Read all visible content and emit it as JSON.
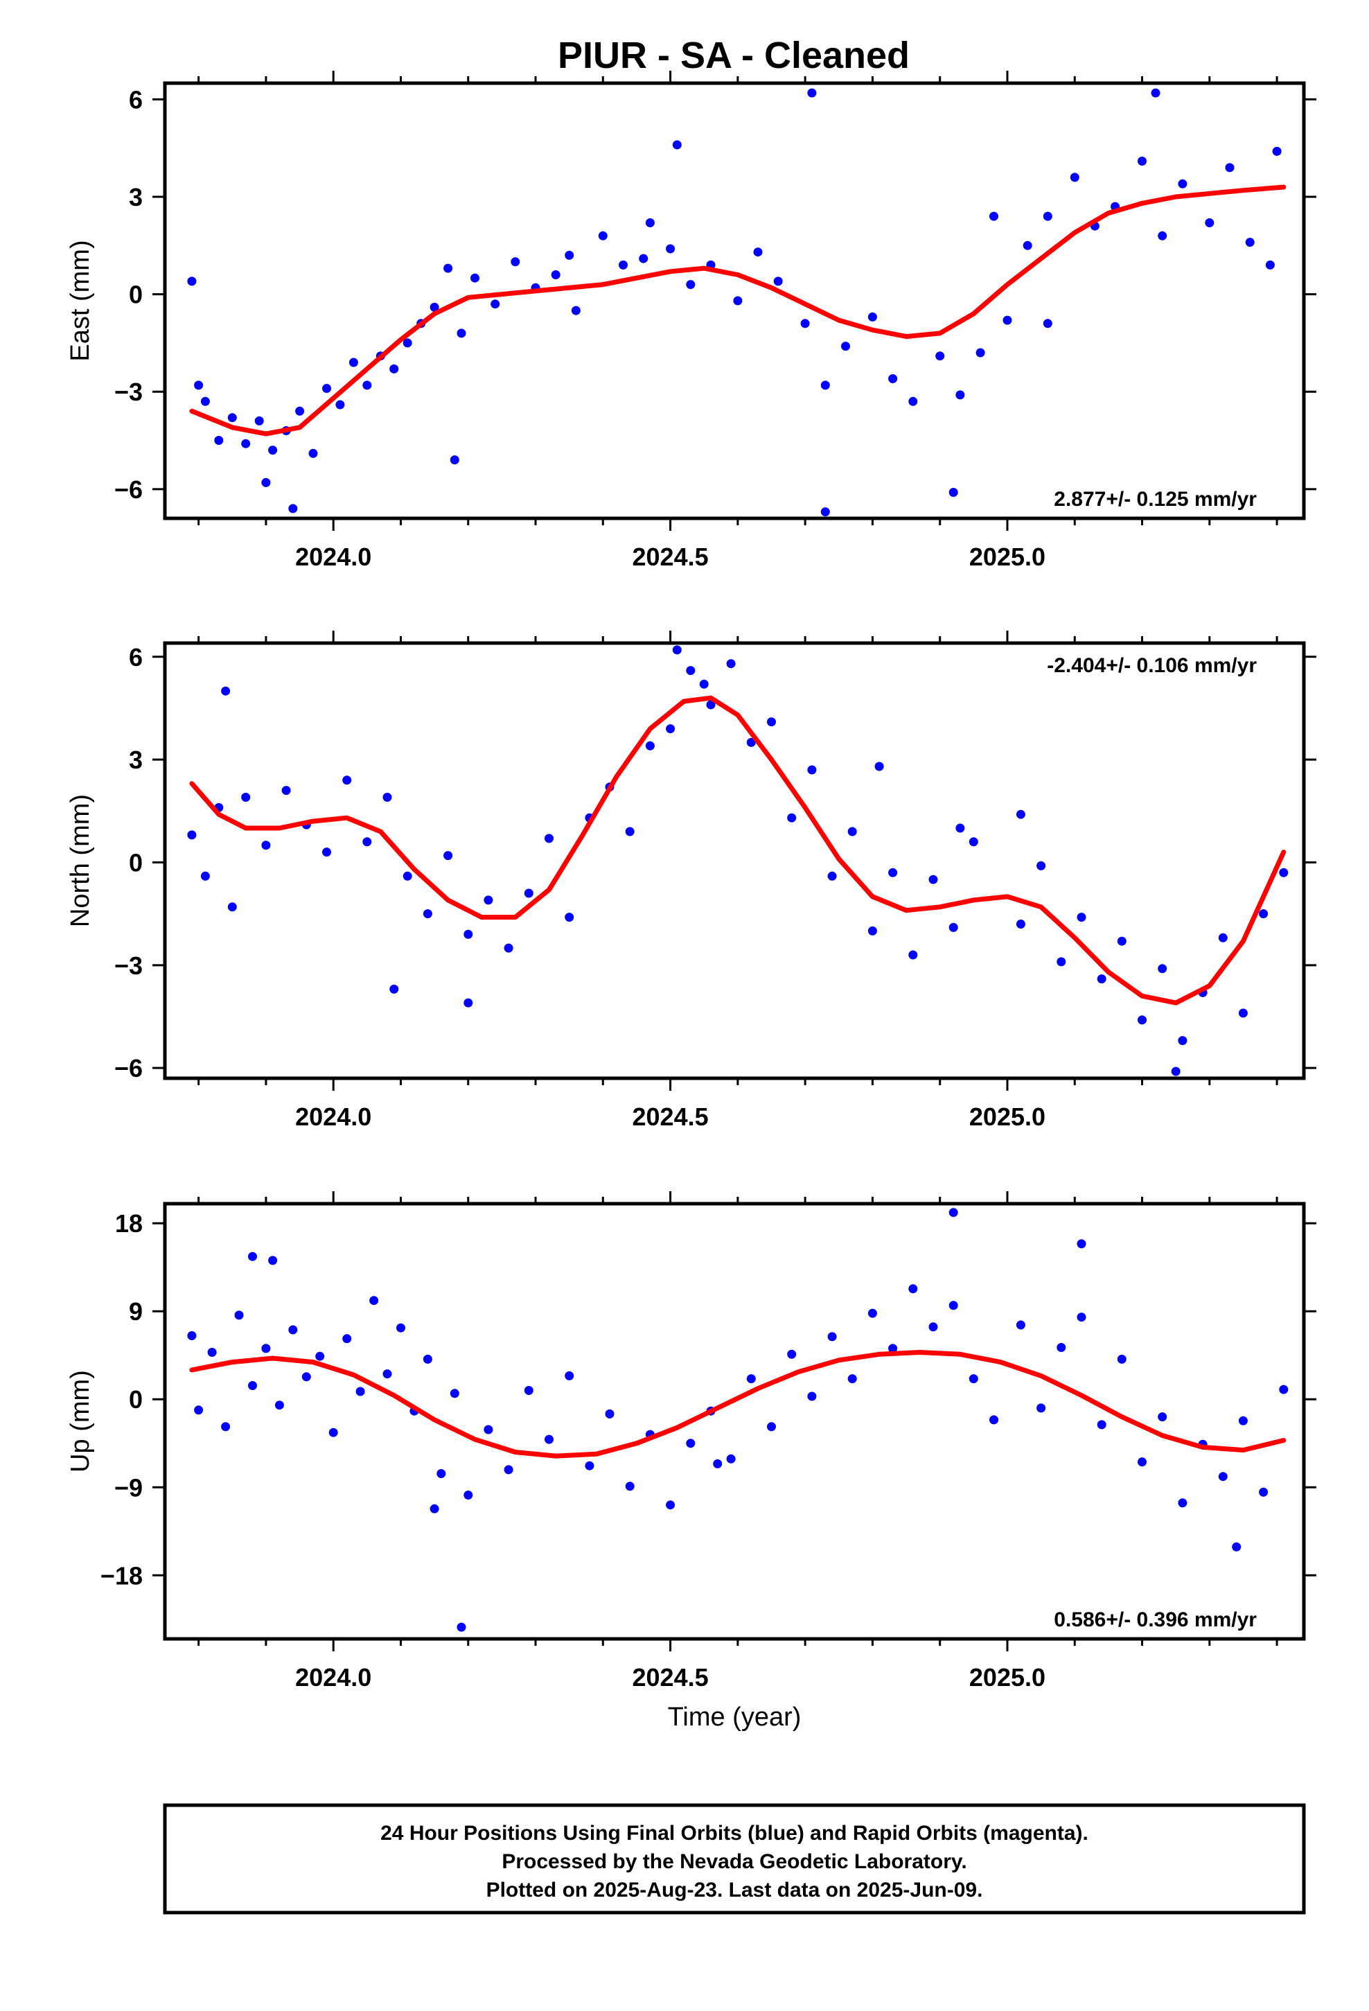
{
  "page": {
    "title": "PIUR  - SA - Cleaned",
    "caption_lines": [
      "24 Hour Positions Using Final Orbits (blue) and Rapid Orbits (magenta).",
      "Processed by the Nevada Geodetic Laboratory.",
      "Plotted on 2025-Aug-23. Last data on 2025-Jun-09."
    ]
  },
  "colors": {
    "points": "#0000ff",
    "fit": "#ff0000",
    "axes": "#000000"
  },
  "chart_data": [
    {
      "type": "scatter",
      "panel": "east",
      "ylabel": "East (mm)",
      "xlabel": "",
      "xlim": [
        2023.75,
        2025.44
      ],
      "ylim": [
        -6.9,
        6.5
      ],
      "xticks": [
        2024.0,
        2024.5,
        2025.0
      ],
      "xtick_labels": [
        "2024.0",
        "2024.5",
        "2025.0"
      ],
      "yticks": [
        6,
        3,
        0,
        -3,
        -6
      ],
      "ytick_labels": [
        "6",
        "3",
        "0",
        "−3",
        "−6"
      ],
      "rate_text": "2.877+/- 0.125 mm/yr",
      "rate_position": "bottom-right",
      "fit_trend": {
        "x": [
          2023.79,
          2023.85,
          2023.9,
          2023.95,
          2024.0,
          2024.05,
          2024.1,
          2024.15,
          2024.2,
          2024.3,
          2024.4,
          2024.5,
          2024.55,
          2024.6,
          2024.65,
          2024.7,
          2024.75,
          2024.8,
          2024.85,
          2024.9,
          2024.95,
          2025.0,
          2025.05,
          2025.1,
          2025.15,
          2025.2,
          2025.25,
          2025.3,
          2025.35,
          2025.41
        ],
        "y": [
          -3.6,
          -4.1,
          -4.3,
          -4.1,
          -3.2,
          -2.3,
          -1.4,
          -0.6,
          -0.1,
          0.1,
          0.3,
          0.7,
          0.8,
          0.6,
          0.2,
          -0.3,
          -0.8,
          -1.1,
          -1.3,
          -1.2,
          -0.6,
          0.3,
          1.1,
          1.9,
          2.5,
          2.8,
          3.0,
          3.1,
          3.2,
          3.3
        ]
      },
      "points": {
        "x": [
          2023.79,
          2023.8,
          2023.81,
          2023.83,
          2023.85,
          2023.87,
          2023.89,
          2023.91,
          2023.93,
          2023.95,
          2023.97,
          2023.99,
          2024.01,
          2024.03,
          2024.05,
          2024.07,
          2024.09,
          2024.11,
          2024.13,
          2024.15,
          2024.17,
          2024.19,
          2024.21,
          2024.24,
          2024.27,
          2024.3,
          2024.33,
          2024.36,
          2024.4,
          2024.43,
          2024.46,
          2024.5,
          2024.53,
          2024.56,
          2024.6,
          2024.63,
          2024.66,
          2024.7,
          2024.73,
          2024.76,
          2024.8,
          2024.83,
          2024.86,
          2024.9,
          2024.93,
          2024.96,
          2025.0,
          2025.03,
          2025.06,
          2025.1,
          2025.13,
          2025.16,
          2025.2,
          2025.23,
          2025.26,
          2025.3,
          2025.33,
          2025.36,
          2025.4,
          2023.9,
          2023.94,
          2024.18,
          2024.51,
          2024.71,
          2024.92,
          2025.22,
          2025.06,
          2024.73,
          2024.98,
          2025.39,
          2024.35,
          2024.47
        ],
        "y": [
          0.4,
          -2.8,
          -3.3,
          -4.5,
          -3.8,
          -4.6,
          -3.9,
          -4.8,
          -4.2,
          -3.6,
          -4.9,
          -2.9,
          -3.4,
          -2.1,
          -2.8,
          -1.9,
          -2.3,
          -1.5,
          -0.9,
          -0.4,
          0.8,
          -1.2,
          0.5,
          -0.3,
          1.0,
          0.2,
          0.6,
          -0.5,
          1.8,
          0.9,
          1.1,
          1.4,
          0.3,
          0.9,
          -0.2,
          1.3,
          0.4,
          -0.9,
          -2.8,
          -1.6,
          -0.7,
          -2.6,
          -3.3,
          -1.9,
          -3.1,
          -1.8,
          -0.8,
          1.5,
          2.4,
          3.6,
          2.1,
          2.7,
          4.1,
          1.8,
          3.4,
          2.2,
          3.9,
          1.6,
          4.4,
          -5.8,
          -6.6,
          -5.1,
          4.6,
          6.2,
          -6.1,
          6.2,
          -0.9,
          -6.7,
          2.4,
          0.9,
          1.2,
          2.2
        ]
      }
    },
    {
      "type": "scatter",
      "panel": "north",
      "ylabel": "North (mm)",
      "xlabel": "",
      "xlim": [
        2023.75,
        2025.44
      ],
      "ylim": [
        -6.3,
        6.4
      ],
      "xticks": [
        2024.0,
        2024.5,
        2025.0
      ],
      "xtick_labels": [
        "2024.0",
        "2024.5",
        "2025.0"
      ],
      "yticks": [
        6,
        3,
        0,
        -3,
        -6
      ],
      "ytick_labels": [
        "6",
        "3",
        "0",
        "−3",
        "−6"
      ],
      "rate_text": "-2.404+/- 0.106 mm/yr",
      "rate_position": "top-right",
      "fit_trend": {
        "x": [
          2023.79,
          2023.83,
          2023.87,
          2023.92,
          2023.97,
          2024.02,
          2024.07,
          2024.12,
          2024.17,
          2024.22,
          2024.27,
          2024.32,
          2024.37,
          2024.42,
          2024.47,
          2024.52,
          2024.56,
          2024.6,
          2024.65,
          2024.7,
          2024.75,
          2024.8,
          2024.85,
          2024.9,
          2024.95,
          2025.0,
          2025.05,
          2025.1,
          2025.15,
          2025.2,
          2025.25,
          2025.3,
          2025.35,
          2025.41
        ],
        "y": [
          2.3,
          1.4,
          1.0,
          1.0,
          1.2,
          1.3,
          0.9,
          -0.2,
          -1.1,
          -1.6,
          -1.6,
          -0.8,
          0.8,
          2.5,
          3.9,
          4.7,
          4.8,
          4.3,
          3.0,
          1.6,
          0.1,
          -1.0,
          -1.4,
          -1.3,
          -1.1,
          -1.0,
          -1.3,
          -2.2,
          -3.2,
          -3.9,
          -4.1,
          -3.6,
          -2.3,
          0.3
        ]
      },
      "points": {
        "x": [
          2023.79,
          2023.81,
          2023.83,
          2023.85,
          2023.87,
          2023.9,
          2023.93,
          2023.96,
          2023.99,
          2024.02,
          2024.05,
          2024.08,
          2024.11,
          2024.14,
          2024.17,
          2024.2,
          2024.23,
          2024.26,
          2024.29,
          2024.32,
          2024.35,
          2024.38,
          2024.41,
          2024.44,
          2024.47,
          2024.5,
          2024.53,
          2024.56,
          2024.59,
          2024.62,
          2024.65,
          2024.68,
          2024.71,
          2024.74,
          2024.77,
          2024.8,
          2024.83,
          2024.86,
          2024.89,
          2024.92,
          2024.95,
          2025.02,
          2025.05,
          2025.08,
          2025.11,
          2025.14,
          2025.17,
          2025.2,
          2025.23,
          2025.26,
          2025.29,
          2025.32,
          2025.35,
          2025.38,
          2025.41,
          2023.84,
          2024.09,
          2024.2,
          2024.51,
          2024.81,
          2025.25,
          2024.55,
          2025.02,
          2024.93
        ],
        "y": [
          0.8,
          -0.4,
          1.6,
          -1.3,
          1.9,
          0.5,
          2.1,
          1.1,
          0.3,
          2.4,
          0.6,
          1.9,
          -0.4,
          -1.5,
          0.2,
          -2.1,
          -1.1,
          -2.5,
          -0.9,
          0.7,
          -1.6,
          1.3,
          2.2,
          0.9,
          3.4,
          3.9,
          5.6,
          4.6,
          5.8,
          3.5,
          4.1,
          1.3,
          2.7,
          -0.4,
          0.9,
          -2.0,
          -0.3,
          -2.7,
          -0.5,
          -1.9,
          0.6,
          -1.8,
          -0.1,
          -2.9,
          -1.6,
          -3.4,
          -2.3,
          -4.6,
          -3.1,
          -5.2,
          -3.8,
          -2.2,
          -4.4,
          -1.5,
          -0.3,
          5.0,
          -3.7,
          -4.1,
          6.2,
          2.8,
          -6.1,
          5.2,
          1.4,
          1.0
        ]
      }
    },
    {
      "type": "scatter",
      "panel": "up",
      "ylabel": "Up (mm)",
      "xlabel": "Time (year)",
      "xlim": [
        2023.75,
        2025.44
      ],
      "ylim": [
        -24.5,
        20.0
      ],
      "xticks": [
        2024.0,
        2024.5,
        2025.0
      ],
      "xtick_labels": [
        "2024.0",
        "2024.5",
        "2025.0"
      ],
      "yticks": [
        18,
        9,
        0,
        -9,
        -18
      ],
      "ytick_labels": [
        "18",
        "9",
        "0",
        "−9",
        "−18"
      ],
      "rate_text": "0.586+/- 0.396 mm/yr",
      "rate_position": "bottom-right",
      "fit_trend": {
        "x": [
          2023.79,
          2023.85,
          2023.91,
          2023.97,
          2024.03,
          2024.09,
          2024.15,
          2024.21,
          2024.27,
          2024.33,
          2024.39,
          2024.45,
          2024.51,
          2024.57,
          2024.63,
          2024.69,
          2024.75,
          2024.81,
          2024.87,
          2024.93,
          2024.99,
          2025.05,
          2025.11,
          2025.17,
          2025.23,
          2025.29,
          2025.35,
          2025.41
        ],
        "y": [
          3.0,
          3.8,
          4.2,
          3.8,
          2.5,
          0.4,
          -2.1,
          -4.1,
          -5.4,
          -5.8,
          -5.6,
          -4.5,
          -2.9,
          -0.9,
          1.1,
          2.8,
          4.0,
          4.6,
          4.8,
          4.6,
          3.8,
          2.4,
          0.4,
          -1.8,
          -3.7,
          -4.9,
          -5.2,
          -4.2
        ]
      },
      "points": {
        "x": [
          2023.79,
          2023.8,
          2023.82,
          2023.84,
          2023.86,
          2023.88,
          2023.9,
          2023.92,
          2023.94,
          2023.96,
          2023.98,
          2024.0,
          2024.02,
          2024.04,
          2024.06,
          2024.08,
          2024.1,
          2024.12,
          2024.14,
          2024.16,
          2024.18,
          2024.2,
          2024.23,
          2024.26,
          2024.29,
          2024.32,
          2024.35,
          2024.38,
          2024.41,
          2024.44,
          2024.47,
          2024.5,
          2024.53,
          2024.56,
          2024.59,
          2024.62,
          2024.65,
          2024.68,
          2024.71,
          2024.74,
          2024.77,
          2024.8,
          2024.83,
          2024.86,
          2024.89,
          2024.92,
          2024.95,
          2025.02,
          2025.05,
          2025.08,
          2025.11,
          2025.14,
          2025.17,
          2025.2,
          2025.23,
          2025.26,
          2025.29,
          2025.32,
          2025.35,
          2025.38,
          2025.41,
          2023.88,
          2023.91,
          2024.19,
          2024.92,
          2025.11,
          2025.34,
          2024.15,
          2024.57,
          2024.98
        ],
        "y": [
          6.5,
          -1.1,
          4.8,
          -2.8,
          8.6,
          1.4,
          5.2,
          -0.6,
          7.1,
          2.3,
          4.4,
          -3.4,
          6.2,
          0.8,
          10.1,
          2.6,
          7.3,
          -1.2,
          4.1,
          -7.6,
          0.6,
          -9.8,
          -3.1,
          -7.2,
          0.9,
          -4.1,
          2.4,
          -6.8,
          -1.5,
          -8.9,
          -3.6,
          -10.8,
          -4.5,
          -1.2,
          -6.1,
          2.1,
          -2.8,
          4.6,
          0.3,
          6.4,
          2.1,
          8.8,
          5.2,
          11.3,
          7.4,
          9.6,
          2.1,
          7.6,
          -0.9,
          5.3,
          8.4,
          -2.6,
          4.1,
          -6.4,
          -1.8,
          -10.6,
          -4.6,
          -7.9,
          -2.2,
          -9.5,
          1.0,
          14.6,
          14.2,
          -23.3,
          19.1,
          15.9,
          -15.1,
          -11.2,
          -6.6,
          -2.1
        ]
      }
    }
  ]
}
